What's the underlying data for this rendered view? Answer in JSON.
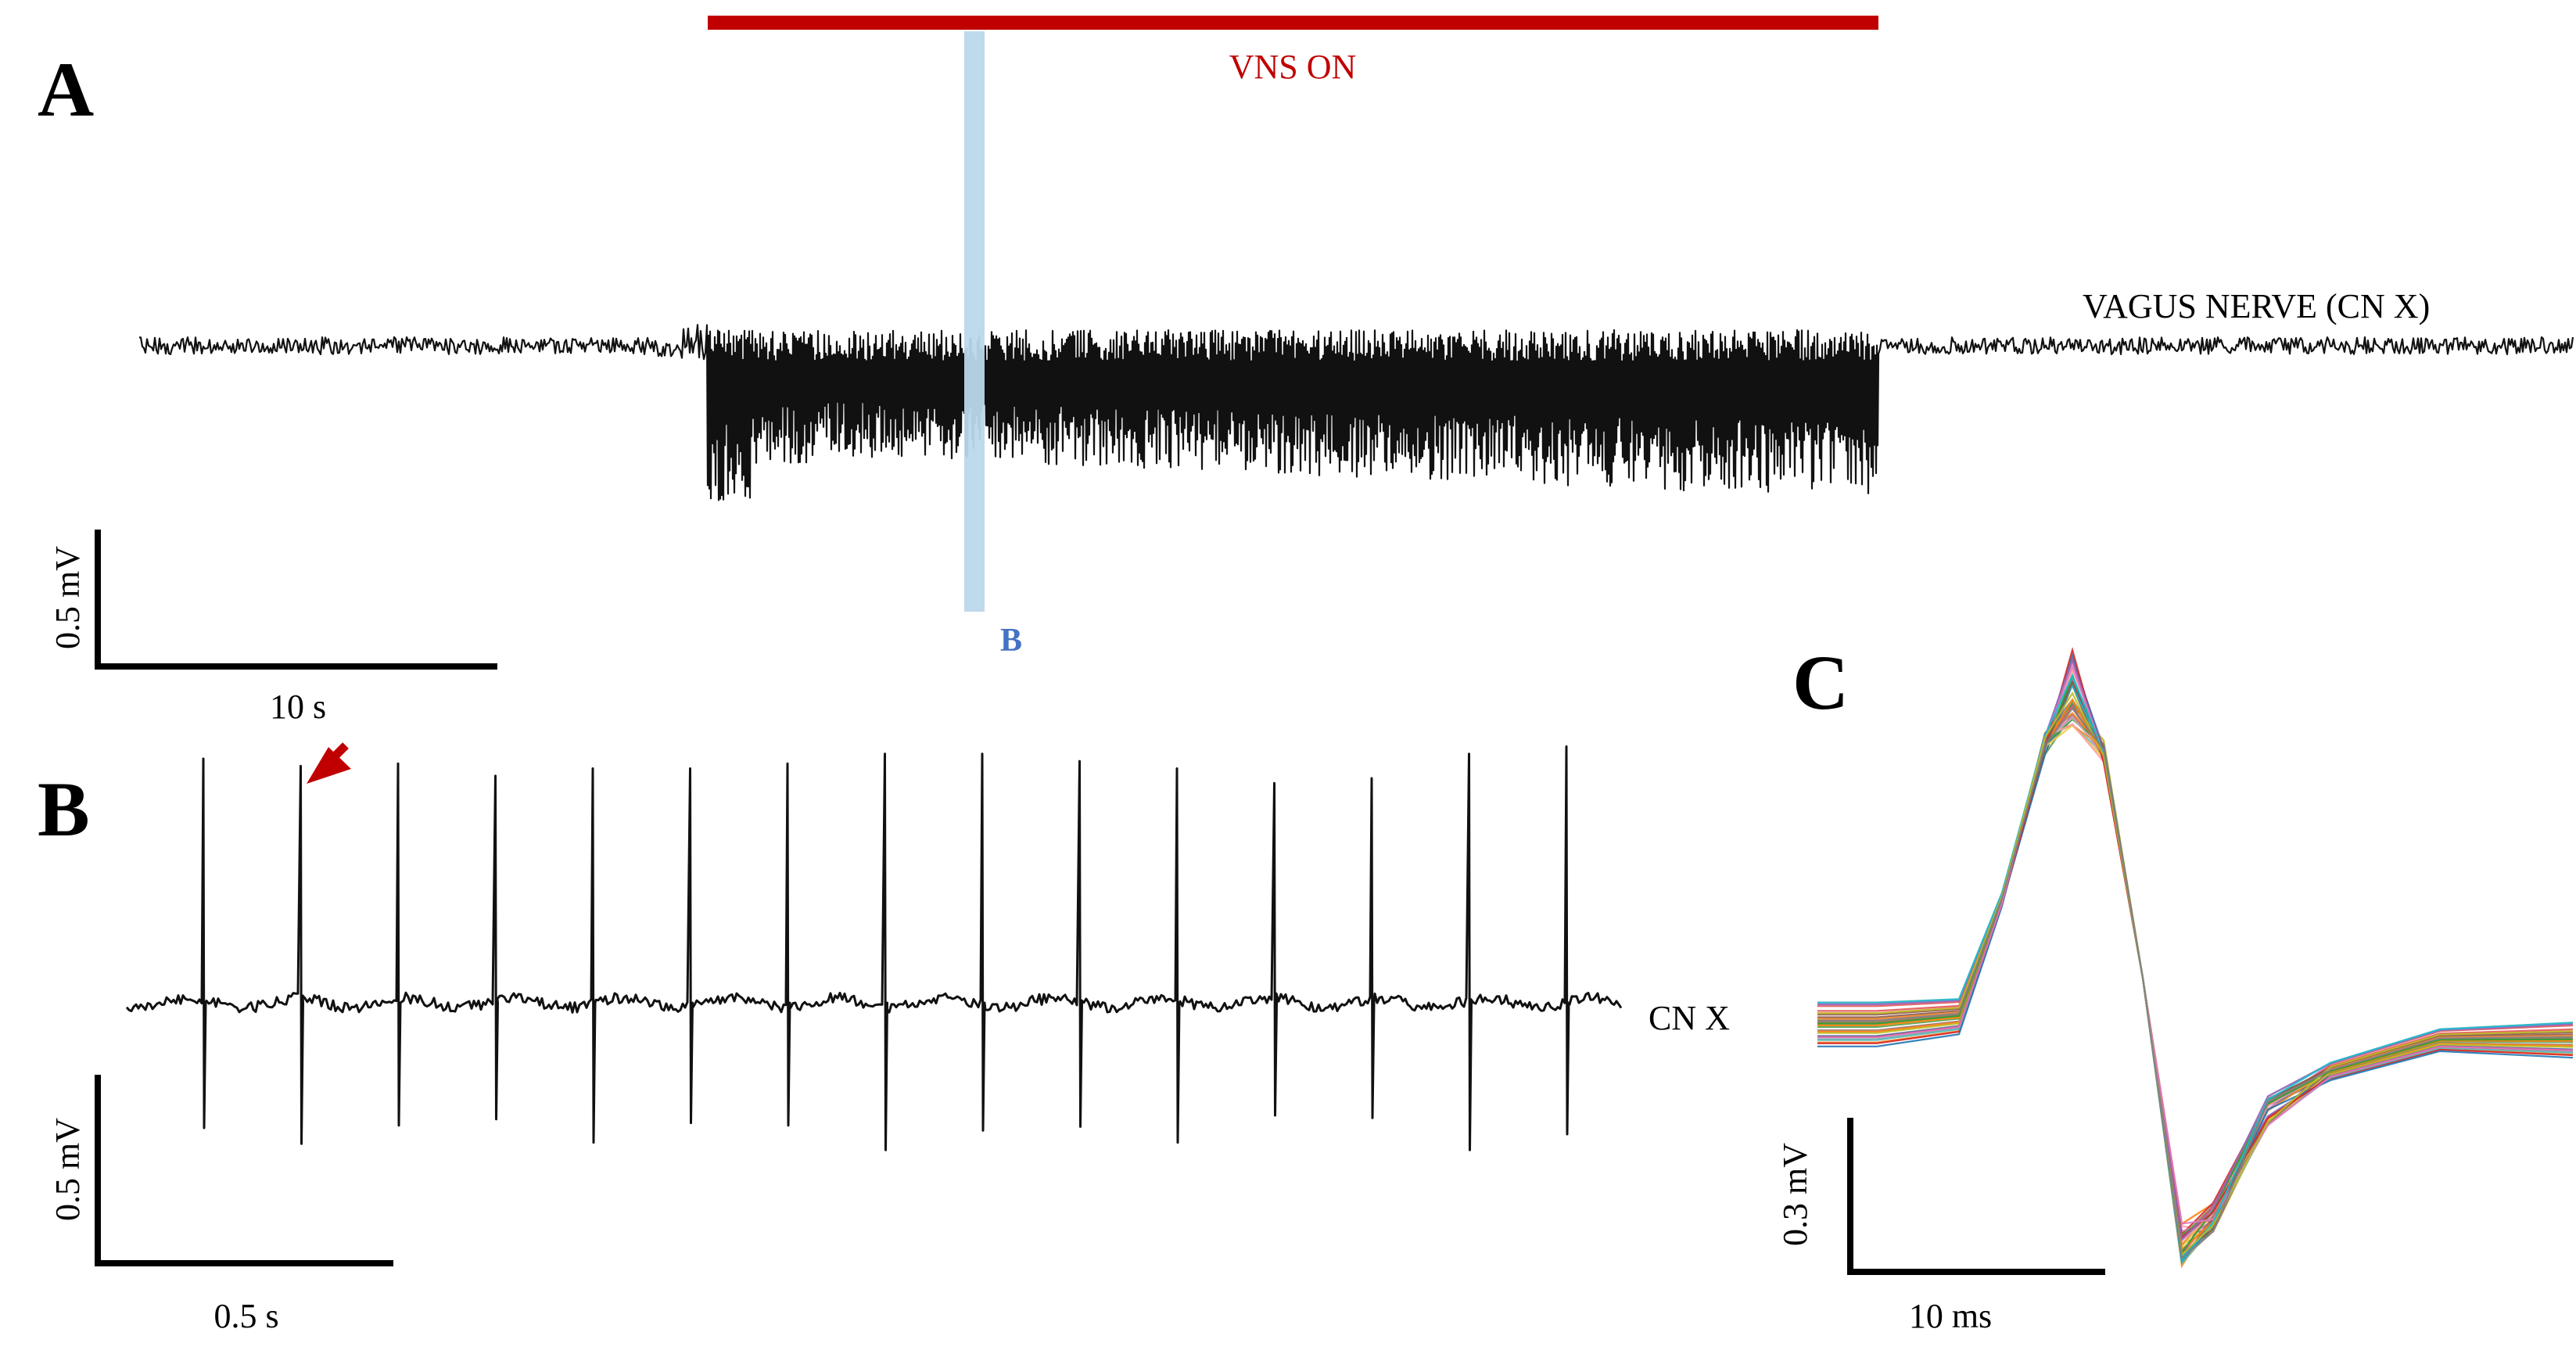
{
  "figure": {
    "panels": {
      "a": {
        "letter": "A",
        "stim_label": "VNS ON",
        "trace_label": "VAGUS NERVE (CN X)",
        "window_marker_label": "B",
        "scalebar_v": "0.5 mV",
        "scalebar_h": "10 s"
      },
      "b": {
        "letter": "B",
        "trace_label": "CN X",
        "scalebar_v": "0.5 mV",
        "scalebar_h": "0.5 s"
      },
      "c": {
        "letter": "C",
        "scalebar_v": "0.3 mV",
        "scalebar_h": "10 ms"
      }
    },
    "colors": {
      "stim_bar": "#c00000",
      "window_marker": "#bcd7ec",
      "window_marker_text": "#4472c4",
      "arrow": "#c00000",
      "trace": "#111111"
    },
    "icons": {
      "spike_pointer": "red-arrow-icon"
    }
  },
  "chart_data": [
    {
      "type": "line",
      "panel": "A",
      "series": [
        {
          "name": "VAGUS NERVE (CN X)",
          "segments": [
            "baseline",
            "VNS ON",
            "baseline"
          ]
        }
      ],
      "x_scalebar": {
        "value": 10,
        "unit": "s"
      },
      "y_scalebar": {
        "value": 0.5,
        "unit": "mV"
      },
      "annotations": [
        "VNS ON",
        "B"
      ]
    },
    {
      "type": "line",
      "panel": "B",
      "series": [
        {
          "name": "CN X",
          "spike_count": 15,
          "spike_amplitudes": [
            1.0,
            0.97,
            0.98,
            0.93,
            0.96,
            0.96,
            0.98,
            1.02,
            1.02,
            0.99,
            0.96,
            0.9,
            0.92,
            1.02,
            1.05
          ]
        }
      ],
      "x_scalebar": {
        "value": 0.5,
        "unit": "s"
      },
      "y_scalebar": {
        "value": 0.5,
        "unit": "mV"
      }
    },
    {
      "type": "line",
      "panel": "C",
      "series": [
        {
          "name": "overlaid spike waveforms",
          "waveform_count": 40
        }
      ],
      "x_scalebar": {
        "value": 10,
        "unit": "ms"
      },
      "y_scalebar": {
        "value": 0.3,
        "unit": "mV"
      }
    }
  ]
}
